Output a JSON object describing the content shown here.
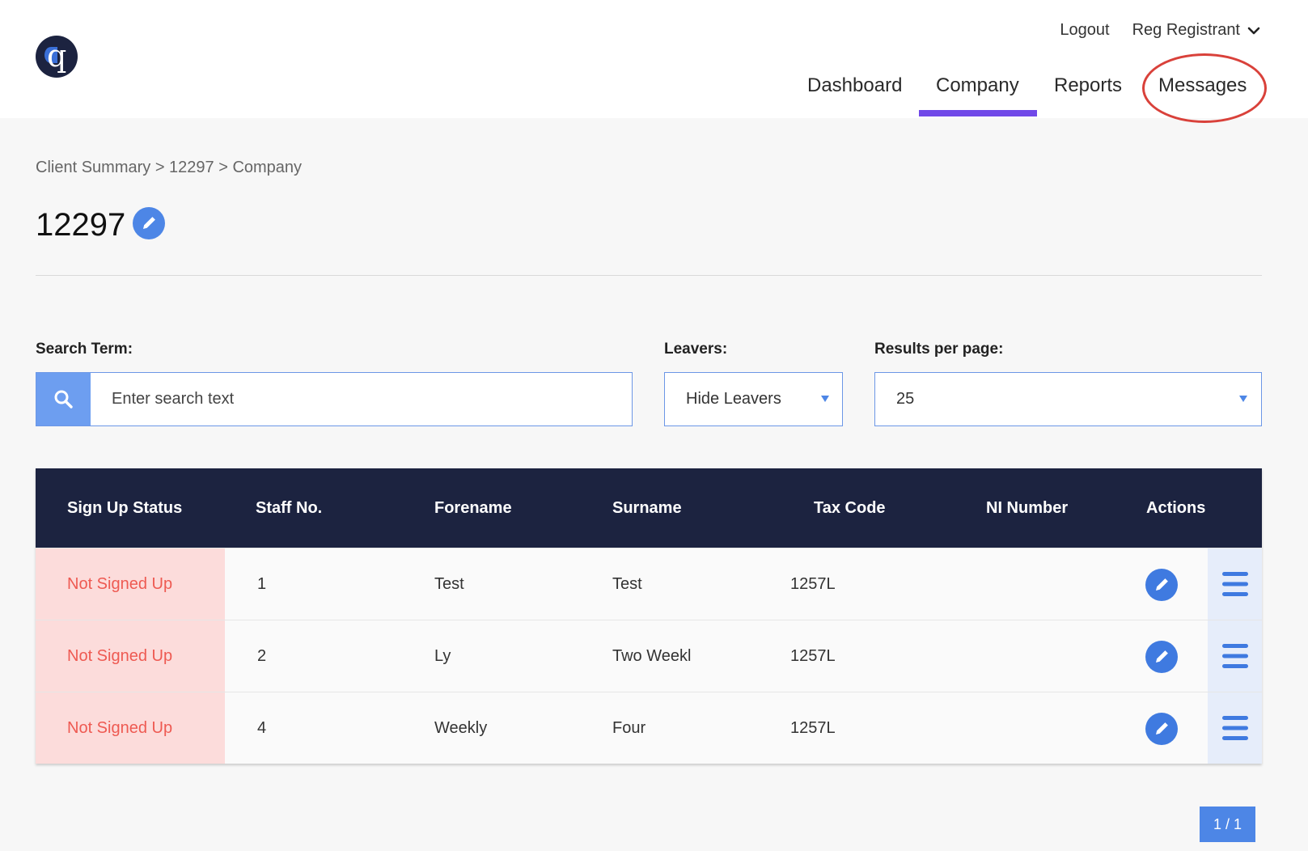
{
  "header": {
    "logo_letter": "q",
    "logout_label": "Logout",
    "user_name": "Reg Registrant"
  },
  "nav": {
    "tabs": [
      {
        "label": "Dashboard",
        "active": false
      },
      {
        "label": "Company",
        "active": true
      },
      {
        "label": "Reports",
        "active": false
      },
      {
        "label": "Messages",
        "active": false,
        "highlighted": true
      }
    ]
  },
  "breadcrumb": "Client Summary > 12297 > Company",
  "page_title": "12297",
  "filters": {
    "search_label": "Search Term:",
    "search_placeholder": "Enter search text",
    "leavers_label": "Leavers:",
    "leavers_value": "Hide Leavers",
    "results_label": "Results per page:",
    "results_value": "25"
  },
  "table": {
    "columns": [
      "Sign Up Status",
      "Staff No.",
      "Forename",
      "Surname",
      "Tax Code",
      "NI Number",
      "Actions"
    ],
    "rows": [
      {
        "status": "Not Signed Up",
        "staff_no": "1",
        "forename": "Test",
        "surname": "Test",
        "tax_code": "1257L",
        "ni_number": ""
      },
      {
        "status": "Not Signed Up",
        "staff_no": "2",
        "forename": "Ly",
        "surname": "Two Weekl",
        "tax_code": "1257L",
        "ni_number": ""
      },
      {
        "status": "Not Signed Up",
        "staff_no": "4",
        "forename": "Weekly",
        "surname": "Four",
        "tax_code": "1257L",
        "ni_number": ""
      }
    ]
  },
  "pagination": {
    "label": "1 / 1"
  },
  "colors": {
    "nav_dark": "#1c2340",
    "accent_blue": "#4d86e6",
    "active_tab_underline": "#7048e8",
    "highlight_ring": "#d9413a",
    "status_bg": "#fcdcdb",
    "status_text": "#ee5a52"
  }
}
